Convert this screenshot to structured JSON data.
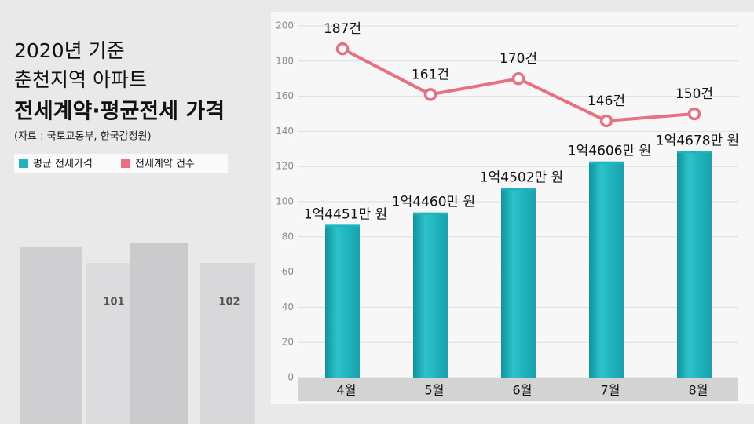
{
  "header": {
    "title_lines": [
      "2020년 기준",
      "춘천지역 아파트"
    ],
    "title": "전세계약·평균전세 가격",
    "source": "(자료 : 국토교통부, 한국감정원)"
  },
  "building_labels": [
    "101",
    "102"
  ],
  "chart_data": {
    "type": "bar_line",
    "categories": [
      "4월",
      "5월",
      "6월",
      "7월",
      "8월"
    ],
    "series": [
      {
        "name": "평균 전세가격",
        "type": "bar",
        "color": "#1fb3bd",
        "values": [
          86,
          93,
          107,
          122,
          128
        ],
        "annotations": [
          "1억4451만 원",
          "1억4460만 원",
          "1억4502만 원",
          "1억4606만 원",
          "1억4678만 원"
        ]
      },
      {
        "name": "전세계약 건수",
        "type": "line",
        "color": "#e8707f",
        "values": [
          187,
          161,
          170,
          146,
          150
        ],
        "value_labels": [
          "187건",
          "161건",
          "170건",
          "146건",
          "150건"
        ]
      }
    ],
    "ylim": [
      0,
      200
    ],
    "yticks": [
      0,
      20,
      40,
      60,
      80,
      100,
      120,
      140,
      160,
      180,
      200
    ],
    "grid": true
  }
}
